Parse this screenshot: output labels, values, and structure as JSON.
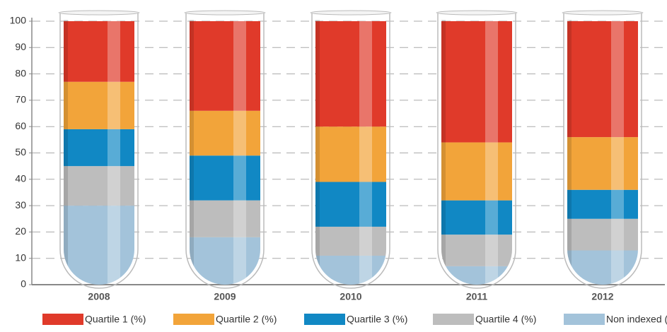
{
  "chart_data": {
    "type": "bar",
    "stacked": true,
    "categories": [
      "2008",
      "2009",
      "2010",
      "2011",
      "2012"
    ],
    "series": [
      {
        "name": "Quartile 1 (%)",
        "color": "#e03a2a",
        "values": [
          23,
          34,
          40,
          46,
          44
        ]
      },
      {
        "name": "Quartile 2 (%)",
        "color": "#f2a43a",
        "values": [
          18,
          17,
          21,
          22,
          20
        ]
      },
      {
        "name": "Quartile 3 (%)",
        "color": "#1188c4",
        "values": [
          14,
          17,
          17,
          13,
          11
        ]
      },
      {
        "name": "Quartile 4 (%)",
        "color": "#bdbdbd",
        "values": [
          15,
          14,
          11,
          12,
          12
        ]
      },
      {
        "name": "Non indexed (%)",
        "color": "#a3c3da",
        "values": [
          30,
          18,
          11,
          7,
          13
        ]
      }
    ],
    "ylim": [
      0,
      100
    ],
    "yticks": [
      0,
      10,
      20,
      30,
      40,
      50,
      60,
      70,
      80,
      90,
      100
    ],
    "grid": true
  }
}
